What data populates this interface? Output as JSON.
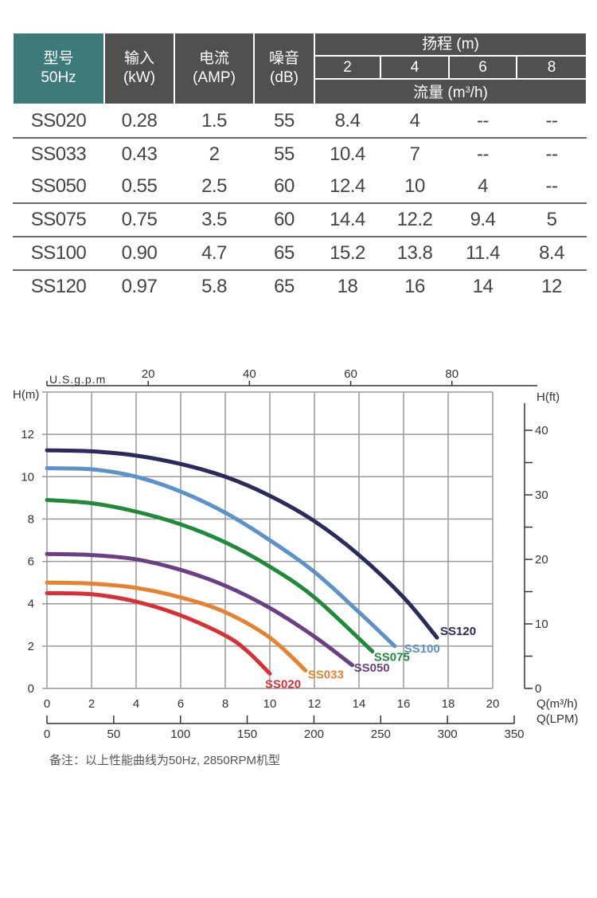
{
  "table": {
    "headers": {
      "model": {
        "line1": "型号",
        "line2": "50Hz"
      },
      "power": {
        "line1": "输入",
        "line2": "(kW)"
      },
      "current": {
        "line1": "电流",
        "line2": "(AMP)"
      },
      "noise": {
        "line1": "噪音",
        "line2": "(dB)"
      },
      "head_group": "扬程 (m)",
      "head_values": [
        "2",
        "4",
        "6",
        "8"
      ],
      "flow_label_prefix": "流量 (m",
      "flow_label_sup": "3",
      "flow_label_suffix": "/h)"
    },
    "rows": [
      {
        "model": "SS020",
        "power": "0.28",
        "current": "1.5",
        "noise": "55",
        "flows": [
          "8.4",
          "4",
          "--",
          "--"
        ]
      },
      {
        "model": "SS033",
        "power": "0.43",
        "current": "2",
        "noise": "55",
        "flows": [
          "10.4",
          "7",
          "--",
          "--"
        ]
      },
      {
        "model": "SS050",
        "power": "0.55",
        "current": "2.5",
        "noise": "60",
        "flows": [
          "12.4",
          "10",
          "4",
          "--"
        ]
      },
      {
        "model": "SS075",
        "power": "0.75",
        "current": "3.5",
        "noise": "60",
        "flows": [
          "14.4",
          "12.2",
          "9.4",
          "5"
        ]
      },
      {
        "model": "SS100",
        "power": "0.90",
        "current": "4.7",
        "noise": "65",
        "flows": [
          "15.2",
          "13.8",
          "11.4",
          "8.4"
        ]
      },
      {
        "model": "SS120",
        "power": "0.97",
        "current": "5.8",
        "noise": "65",
        "flows": [
          "18",
          "16",
          "14",
          "12"
        ]
      }
    ]
  },
  "chart_data": {
    "type": "line",
    "title": "",
    "xlabel": "Q(m³/h)",
    "ylabel": "H(m)",
    "xlim": [
      0,
      20
    ],
    "ylim": [
      0,
      14
    ],
    "x_ticks": [
      "0",
      "2",
      "4",
      "6",
      "8",
      "10",
      "12",
      "14",
      "16",
      "18",
      "20"
    ],
    "y_ticks": [
      "0",
      "2",
      "4",
      "6",
      "8",
      "10",
      "12"
    ],
    "grid": true,
    "secondary_axes": {
      "top": {
        "label": "U.S.g.p.m",
        "ticks": [
          "20",
          "40",
          "60",
          "80"
        ]
      },
      "right": {
        "label": "H(ft)",
        "ticks": [
          "0",
          "10",
          "20",
          "30",
          "40"
        ]
      },
      "bottom2": {
        "label": "Q(LPM)",
        "ticks": [
          "0",
          "50",
          "100",
          "150",
          "200",
          "250",
          "300",
          "350"
        ]
      }
    },
    "series": [
      {
        "name": "SS020",
        "color": "#d92f35",
        "x": [
          0,
          2,
          4,
          6,
          8,
          9,
          10
        ],
        "y": [
          4.5,
          4.45,
          4.1,
          3.45,
          2.5,
          1.75,
          0.7
        ]
      },
      {
        "name": "SS033",
        "color": "#e8812e",
        "x": [
          0,
          2,
          4,
          6,
          8,
          10,
          11.6
        ],
        "y": [
          5.0,
          4.95,
          4.75,
          4.3,
          3.6,
          2.4,
          0.85
        ]
      },
      {
        "name": "SS050",
        "color": "#6b3f86",
        "x": [
          0,
          2,
          4,
          6,
          8,
          10,
          12,
          13.7
        ],
        "y": [
          6.35,
          6.3,
          6.1,
          5.6,
          4.85,
          3.8,
          2.45,
          1.1
        ]
      },
      {
        "name": "SS075",
        "color": "#1e8a3a",
        "x": [
          0,
          2,
          4,
          6,
          8,
          10,
          12,
          14.6
        ],
        "y": [
          8.9,
          8.75,
          8.35,
          7.75,
          6.9,
          5.75,
          4.3,
          1.75
        ]
      },
      {
        "name": "SS100",
        "color": "#5b93c9",
        "x": [
          0,
          2,
          4,
          6,
          8,
          10,
          12,
          14,
          15.6
        ],
        "y": [
          10.4,
          10.35,
          10.0,
          9.3,
          8.3,
          7.0,
          5.5,
          3.6,
          2.0
        ]
      },
      {
        "name": "SS120",
        "color": "#2b2a5c",
        "x": [
          0,
          2,
          4,
          6,
          8,
          10,
          12,
          14,
          16,
          17.5
        ],
        "y": [
          11.25,
          11.2,
          11.0,
          10.6,
          10.0,
          9.1,
          7.9,
          6.3,
          4.3,
          2.4
        ]
      }
    ]
  },
  "note": "备注：以上性能曲线为50Hz, 2850RPM机型"
}
